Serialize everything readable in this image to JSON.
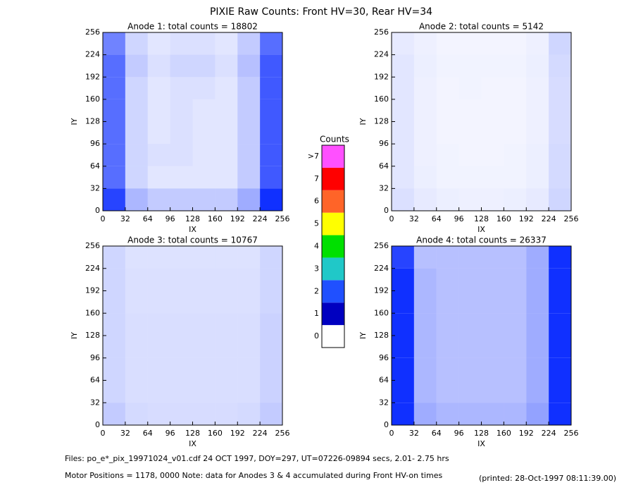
{
  "title": "PIXIE Raw Counts:  Front HV=30, Rear HV=34",
  "colorbar": {
    "title": "Counts",
    "labels": [
      "0",
      "1",
      "2",
      "3",
      "4",
      "5",
      "6",
      "7",
      ">7"
    ],
    "colors": [
      "#ffffff",
      "#0000c0",
      "#2050ff",
      "#20c8c8",
      "#00e000",
      "#ffff00",
      "#ff6428",
      "#ff0000",
      "#ff50ff"
    ]
  },
  "footer": [
    "Files: po_e*_pix_19971024_v01.cdf   24 OCT 1997, DOY=297, UT=07226-09894 secs,  2.01- 2.75 hrs",
    "Motor Positions = 1178, 0000   Note: data for Anodes 3 & 4 accumulated during Front HV-on times"
  ],
  "printed": "(printed: 28-Oct-1997 08:11:39.00)",
  "chart_data": [
    {
      "type": "heatmap",
      "title": "Anode 1: total counts = 18802",
      "xlabel": "IX",
      "ylabel": "IY",
      "color": "#1030ff",
      "xlim": [
        0,
        256
      ],
      "ylim": [
        0,
        256
      ],
      "xticks": [
        0,
        32,
        64,
        96,
        128,
        160,
        192,
        224,
        256
      ],
      "yticks": [
        0,
        32,
        64,
        96,
        128,
        160,
        192,
        224,
        256
      ],
      "z": [
        [
          0.9,
          0.35,
          0.25,
          0.25,
          0.25,
          0.25,
          0.4,
          1.0
        ],
        [
          0.7,
          0.2,
          0.12,
          0.12,
          0.12,
          0.12,
          0.25,
          0.8
        ],
        [
          0.7,
          0.2,
          0.15,
          0.15,
          0.12,
          0.12,
          0.25,
          0.8
        ],
        [
          0.7,
          0.2,
          0.12,
          0.15,
          0.12,
          0.12,
          0.25,
          0.8
        ],
        [
          0.7,
          0.2,
          0.12,
          0.15,
          0.12,
          0.12,
          0.25,
          0.8
        ],
        [
          0.7,
          0.2,
          0.12,
          0.15,
          0.15,
          0.12,
          0.25,
          0.8
        ],
        [
          0.7,
          0.25,
          0.15,
          0.2,
          0.2,
          0.15,
          0.3,
          0.8
        ],
        [
          0.6,
          0.2,
          0.12,
          0.15,
          0.15,
          0.12,
          0.25,
          0.7
        ]
      ]
    },
    {
      "type": "heatmap",
      "title": "Anode 2: total counts = 5142",
      "xlabel": "IX",
      "ylabel": "IY",
      "color": "#1030ff",
      "xlim": [
        0,
        256
      ],
      "ylim": [
        0,
        256
      ],
      "xticks": [
        0,
        32,
        64,
        96,
        128,
        160,
        192,
        224,
        256
      ],
      "yticks": [
        0,
        32,
        64,
        96,
        128,
        160,
        192,
        224,
        256
      ],
      "z": [
        [
          0.15,
          0.1,
          0.08,
          0.07,
          0.07,
          0.08,
          0.1,
          0.2
        ],
        [
          0.12,
          0.08,
          0.06,
          0.06,
          0.06,
          0.06,
          0.08,
          0.18
        ],
        [
          0.12,
          0.07,
          0.06,
          0.05,
          0.05,
          0.06,
          0.08,
          0.18
        ],
        [
          0.12,
          0.07,
          0.05,
          0.05,
          0.05,
          0.05,
          0.07,
          0.17
        ],
        [
          0.12,
          0.07,
          0.05,
          0.05,
          0.05,
          0.05,
          0.07,
          0.17
        ],
        [
          0.12,
          0.07,
          0.05,
          0.06,
          0.05,
          0.05,
          0.07,
          0.17
        ],
        [
          0.12,
          0.08,
          0.06,
          0.06,
          0.06,
          0.06,
          0.08,
          0.18
        ],
        [
          0.1,
          0.07,
          0.05,
          0.05,
          0.05,
          0.05,
          0.07,
          0.2
        ]
      ]
    },
    {
      "type": "heatmap",
      "title": "Anode 3: total counts = 10767",
      "xlabel": "IX",
      "ylabel": "IY",
      "color": "#1030ff",
      "xlim": [
        0,
        256
      ],
      "ylim": [
        0,
        256
      ],
      "xticks": [
        0,
        32,
        64,
        96,
        128,
        160,
        192,
        224,
        256
      ],
      "yticks": [
        0,
        32,
        64,
        96,
        128,
        160,
        192,
        224,
        256
      ],
      "z": [
        [
          0.25,
          0.18,
          0.17,
          0.17,
          0.17,
          0.17,
          0.18,
          0.25
        ],
        [
          0.2,
          0.16,
          0.16,
          0.16,
          0.16,
          0.16,
          0.16,
          0.22
        ],
        [
          0.2,
          0.16,
          0.16,
          0.16,
          0.16,
          0.16,
          0.16,
          0.22
        ],
        [
          0.2,
          0.16,
          0.16,
          0.16,
          0.16,
          0.16,
          0.16,
          0.22
        ],
        [
          0.2,
          0.16,
          0.16,
          0.16,
          0.16,
          0.16,
          0.16,
          0.22
        ],
        [
          0.2,
          0.15,
          0.15,
          0.15,
          0.15,
          0.15,
          0.15,
          0.2
        ],
        [
          0.2,
          0.15,
          0.15,
          0.15,
          0.15,
          0.15,
          0.15,
          0.2
        ],
        [
          0.2,
          0.14,
          0.14,
          0.14,
          0.14,
          0.14,
          0.14,
          0.2
        ]
      ]
    },
    {
      "type": "heatmap",
      "title": "Anode 4: total counts = 26337",
      "xlabel": "IX",
      "ylabel": "IY",
      "color": "#1030ff",
      "xlim": [
        0,
        256
      ],
      "ylim": [
        0,
        256
      ],
      "xticks": [
        0,
        32,
        64,
        96,
        128,
        160,
        192,
        224,
        256
      ],
      "yticks": [
        0,
        32,
        64,
        96,
        128,
        160,
        192,
        224,
        256
      ],
      "z": [
        [
          1.0,
          0.4,
          0.35,
          0.35,
          0.35,
          0.35,
          0.45,
          1.3
        ],
        [
          1.0,
          0.35,
          0.3,
          0.3,
          0.3,
          0.3,
          0.4,
          1.3
        ],
        [
          1.0,
          0.35,
          0.3,
          0.3,
          0.3,
          0.3,
          0.4,
          1.3
        ],
        [
          1.0,
          0.35,
          0.3,
          0.3,
          0.3,
          0.3,
          0.4,
          1.3
        ],
        [
          1.0,
          0.35,
          0.3,
          0.3,
          0.3,
          0.3,
          0.4,
          1.3
        ],
        [
          1.0,
          0.35,
          0.3,
          0.3,
          0.3,
          0.3,
          0.4,
          1.3
        ],
        [
          1.0,
          0.35,
          0.3,
          0.3,
          0.3,
          0.3,
          0.4,
          1.3
        ],
        [
          0.9,
          0.3,
          0.3,
          0.3,
          0.3,
          0.3,
          0.4,
          1.2
        ]
      ]
    }
  ]
}
